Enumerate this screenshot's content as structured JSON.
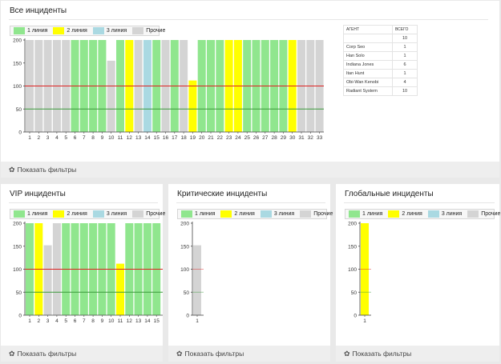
{
  "colors": {
    "line1": "#90e68e",
    "line2": "#ffff00",
    "line3": "#aad9e2",
    "other": "#d4d4d4",
    "red_line": "#dd2222",
    "green_line": "#3a9a3a"
  },
  "legend": [
    "1 линия",
    "2 линия",
    "3 линия",
    "Прочие"
  ],
  "filters_label": "Показать фильтры",
  "panels": {
    "all": {
      "title": "Все инциденты"
    },
    "vip": {
      "title": "VIP инциденты"
    },
    "critical": {
      "title": "Критические инциденты"
    },
    "global": {
      "title": "Глобальные инциденты"
    }
  },
  "agents_table": {
    "headers": [
      "АГЕНТ",
      "ВСЕГО"
    ],
    "rows": [
      [
        "",
        "10"
      ],
      [
        "Corp Seo",
        "1"
      ],
      [
        "Han Solo",
        "1"
      ],
      [
        "Indiana Jones",
        "6"
      ],
      [
        "Itan Hunt",
        "1"
      ],
      [
        "Obi-Wan Kenobi",
        "4"
      ],
      [
        "Radiant System",
        "10"
      ]
    ]
  },
  "chart_data": [
    {
      "id": "all",
      "type": "bar",
      "title": "Все инциденты",
      "ylim": [
        0,
        200
      ],
      "yticks": [
        0,
        50,
        100,
        150,
        200
      ],
      "ref_lines": [
        {
          "value": 100,
          "color": "red"
        },
        {
          "value": 50,
          "color": "green"
        }
      ],
      "categories": [
        "1",
        "2",
        "3",
        "4",
        "5",
        "6",
        "7",
        "8",
        "9",
        "10",
        "11",
        "12",
        "13",
        "14",
        "15",
        "16",
        "17",
        "18",
        "19",
        "20",
        "21",
        "22",
        "23",
        "24",
        "25",
        "26",
        "27",
        "28",
        "29",
        "30",
        "31",
        "32",
        "33"
      ],
      "values": [
        200,
        200,
        200,
        200,
        200,
        200,
        200,
        200,
        200,
        155,
        200,
        200,
        200,
        200,
        200,
        200,
        200,
        200,
        112,
        200,
        200,
        200,
        200,
        200,
        200,
        200,
        200,
        200,
        200,
        200,
        200,
        200,
        200
      ],
      "groups": [
        "other",
        "other",
        "other",
        "other",
        "other",
        "line1",
        "line1",
        "line1",
        "line1",
        "other",
        "line1",
        "line2",
        "other",
        "line3",
        "line1",
        "other",
        "line1",
        "other",
        "line2",
        "line1",
        "line1",
        "line1",
        "line2",
        "line2",
        "line1",
        "line1",
        "line1",
        "line1",
        "line1",
        "line2",
        "other",
        "other",
        "other"
      ]
    },
    {
      "id": "vip",
      "type": "bar",
      "title": "VIP инциденты",
      "ylim": [
        0,
        200
      ],
      "yticks": [
        0,
        50,
        100,
        150,
        200
      ],
      "ref_lines": [
        {
          "value": 100,
          "color": "red"
        },
        {
          "value": 50,
          "color": "green"
        }
      ],
      "categories": [
        "1",
        "2",
        "3",
        "4",
        "5",
        "6",
        "7",
        "8",
        "9",
        "10",
        "11",
        "12",
        "13",
        "14",
        "15"
      ],
      "values": [
        200,
        200,
        152,
        200,
        200,
        200,
        200,
        200,
        200,
        200,
        112,
        200,
        200,
        200,
        200
      ],
      "groups": [
        "line1",
        "line2",
        "other",
        "other",
        "line1",
        "line1",
        "line1",
        "line1",
        "line1",
        "line1",
        "line2",
        "line1",
        "line1",
        "line1",
        "line1"
      ]
    },
    {
      "id": "critical",
      "type": "bar",
      "title": "Критические инциденты",
      "ylim": [
        0,
        200
      ],
      "yticks": [
        0,
        50,
        100,
        150,
        200
      ],
      "ref_lines": [
        {
          "value": 100,
          "color": "red"
        },
        {
          "value": 50,
          "color": "green"
        }
      ],
      "categories": [
        "1"
      ],
      "values": [
        152
      ],
      "groups": [
        "other"
      ]
    },
    {
      "id": "global",
      "type": "bar",
      "title": "Глобальные инциденты",
      "ylim": [
        0,
        200
      ],
      "yticks": [
        0,
        50,
        100,
        150,
        200
      ],
      "ref_lines": [
        {
          "value": 100,
          "color": "red"
        },
        {
          "value": 50,
          "color": "green"
        }
      ],
      "categories": [
        "1"
      ],
      "values": [
        200
      ],
      "groups": [
        "line2"
      ]
    }
  ]
}
